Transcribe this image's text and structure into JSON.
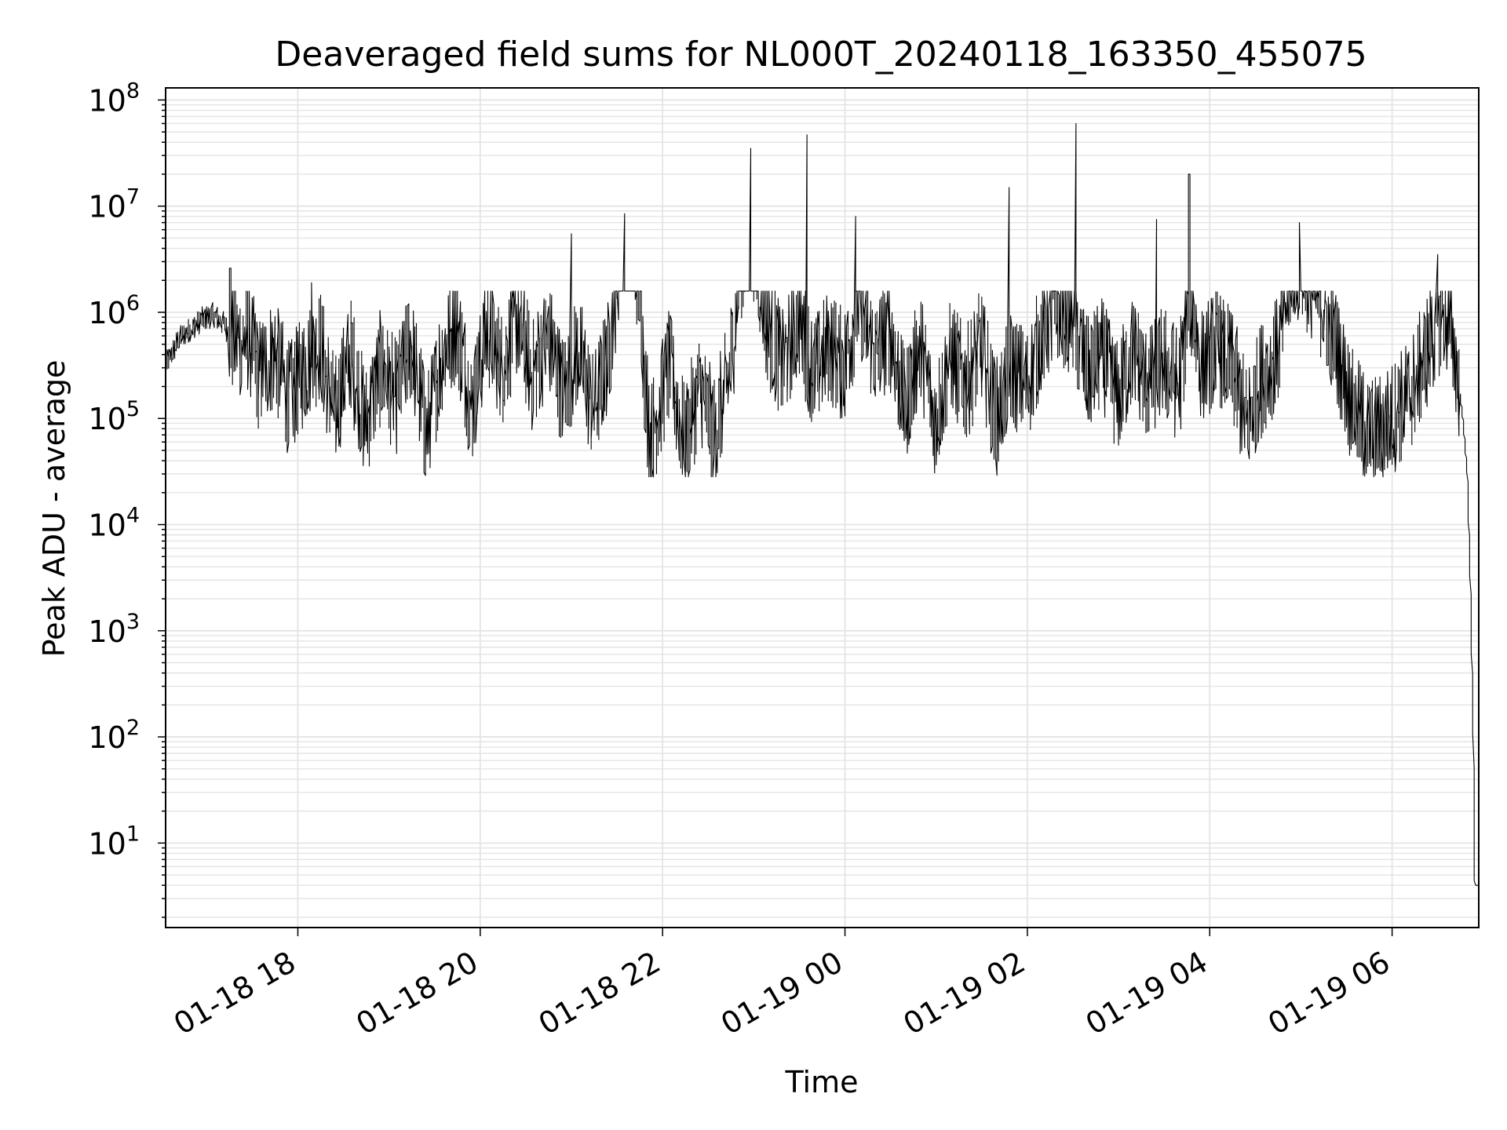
{
  "chart_data": {
    "type": "line",
    "title": "Deaveraged field sums for NL000T_20240118_163350_455075",
    "xlabel": "Time",
    "ylabel": "Peak ADU - average",
    "yscale": "log",
    "ylim": [
      1.6,
      130000000
    ],
    "xlim": [
      "2024-01-18 16:33",
      "2024-01-19 06:57"
    ],
    "grid": true,
    "legend": "none",
    "line_color": "#000000",
    "grid_color": "#e4e4e4",
    "x_ticks": [
      {
        "label": "01-18 18",
        "value": "2024-01-18 18:00"
      },
      {
        "label": "01-18 20",
        "value": "2024-01-18 20:00"
      },
      {
        "label": "01-18 22",
        "value": "2024-01-18 22:00"
      },
      {
        "label": "01-19 00",
        "value": "2024-01-19 00:00"
      },
      {
        "label": "01-19 02",
        "value": "2024-01-19 02:00"
      },
      {
        "label": "01-19 04",
        "value": "2024-01-19 04:00"
      },
      {
        "label": "01-19 06",
        "value": "2024-01-19 06:00"
      }
    ],
    "y_ticks": [
      {
        "base": "10",
        "exp": "1",
        "value": 10
      },
      {
        "base": "10",
        "exp": "2",
        "value": 100
      },
      {
        "base": "10",
        "exp": "3",
        "value": 1000
      },
      {
        "base": "10",
        "exp": "4",
        "value": 10000
      },
      {
        "base": "10",
        "exp": "5",
        "value": 100000
      },
      {
        "base": "10",
        "exp": "6",
        "value": 1000000
      },
      {
        "base": "10",
        "exp": "7",
        "value": 10000000
      },
      {
        "base": "10",
        "exp": "8",
        "value": 100000000
      }
    ],
    "series": [
      {
        "points": [
          [
            "2024-01-18 16:34",
            320000
          ],
          [
            "2024-01-18 16:42",
            560000
          ],
          [
            "2024-01-18 16:50",
            700000
          ],
          [
            "2024-01-18 16:58",
            860000
          ],
          [
            "2024-01-18 17:05",
            950000
          ],
          [
            "2024-01-18 17:12",
            760000
          ],
          [
            "2024-01-18 17:20",
            520000
          ],
          [
            "2024-01-18 17:28",
            600000
          ],
          [
            "2024-01-18 17:35",
            250000
          ],
          [
            "2024-01-18 17:45",
            420000
          ],
          [
            "2024-01-18 17:55",
            150000
          ],
          [
            "2024-01-18 18:05",
            300000
          ],
          [
            "2024-01-18 18:15",
            500000
          ],
          [
            "2024-01-18 18:25",
            110000
          ],
          [
            "2024-01-18 18:35",
            420000
          ],
          [
            "2024-01-18 18:45",
            90000
          ],
          [
            "2024-01-18 18:55",
            300000
          ],
          [
            "2024-01-18 19:05",
            160000
          ],
          [
            "2024-01-18 19:15",
            520000
          ],
          [
            "2024-01-18 19:25",
            70000
          ],
          [
            "2024-01-18 19:35",
            380000
          ],
          [
            "2024-01-18 19:45",
            800000
          ],
          [
            "2024-01-18 19:55",
            120000
          ],
          [
            "2024-01-18 20:05",
            700000
          ],
          [
            "2024-01-18 20:15",
            300000
          ],
          [
            "2024-01-18 20:25",
            900000
          ],
          [
            "2024-01-18 20:35",
            250000
          ],
          [
            "2024-01-18 20:45",
            600000
          ],
          [
            "2024-01-18 20:55",
            180000
          ],
          [
            "2024-01-18 21:05",
            450000
          ],
          [
            "2024-01-18 21:15",
            120000
          ],
          [
            "2024-01-18 21:25",
            400000
          ],
          [
            "2024-01-18 21:35",
            8500000
          ],
          [
            "2024-01-18 21:45",
            2000000
          ],
          [
            "2024-01-18 21:52",
            60000
          ],
          [
            "2024-01-18 22:05",
            300000
          ],
          [
            "2024-01-18 22:15",
            60000
          ],
          [
            "2024-01-18 22:25",
            200000
          ],
          [
            "2024-01-18 22:35",
            70000
          ],
          [
            "2024-01-18 22:45",
            300000
          ],
          [
            "2024-01-18 22:52",
            3000000
          ],
          [
            "2024-01-18 23:00",
            5000000
          ],
          [
            "2024-01-18 23:10",
            700000
          ],
          [
            "2024-01-18 23:20",
            300000
          ],
          [
            "2024-01-18 23:30",
            900000
          ],
          [
            "2024-01-18 23:40",
            250000
          ],
          [
            "2024-01-18 23:50",
            500000
          ],
          [
            "2024-01-19 00:00",
            300000
          ],
          [
            "2024-01-19 00:10",
            1500000
          ],
          [
            "2024-01-19 00:20",
            400000
          ],
          [
            "2024-01-19 00:30",
            700000
          ],
          [
            "2024-01-19 00:40",
            120000
          ],
          [
            "2024-01-19 00:50",
            500000
          ],
          [
            "2024-01-19 01:00",
            90000
          ],
          [
            "2024-01-19 01:10",
            400000
          ],
          [
            "2024-01-19 01:20",
            200000
          ],
          [
            "2024-01-19 01:30",
            500000
          ],
          [
            "2024-01-19 01:40",
            100000
          ],
          [
            "2024-01-19 01:50",
            300000
          ],
          [
            "2024-01-19 02:00",
            200000
          ],
          [
            "2024-01-19 02:10",
            600000
          ],
          [
            "2024-01-19 02:20",
            1200000
          ],
          [
            "2024-01-19 02:30",
            900000
          ],
          [
            "2024-01-19 02:40",
            250000
          ],
          [
            "2024-01-19 02:50",
            400000
          ],
          [
            "2024-01-19 03:00",
            150000
          ],
          [
            "2024-01-19 03:10",
            450000
          ],
          [
            "2024-01-19 03:20",
            200000
          ],
          [
            "2024-01-19 03:30",
            350000
          ],
          [
            "2024-01-19 03:40",
            200000
          ],
          [
            "2024-01-19 03:48",
            1500000
          ],
          [
            "2024-01-19 03:55",
            300000
          ],
          [
            "2024-01-19 04:05",
            500000
          ],
          [
            "2024-01-19 04:15",
            300000
          ],
          [
            "2024-01-19 04:25",
            90000
          ],
          [
            "2024-01-19 04:35",
            250000
          ],
          [
            "2024-01-19 04:45",
            400000
          ],
          [
            "2024-01-19 04:55",
            3000000
          ],
          [
            "2024-01-19 05:05",
            2200000
          ],
          [
            "2024-01-19 05:15",
            1200000
          ],
          [
            "2024-01-19 05:25",
            400000
          ],
          [
            "2024-01-19 05:35",
            120000
          ],
          [
            "2024-01-19 05:45",
            70000
          ],
          [
            "2024-01-19 05:55",
            80000
          ],
          [
            "2024-01-19 06:05",
            120000
          ],
          [
            "2024-01-19 06:15",
            200000
          ],
          [
            "2024-01-19 06:25",
            500000
          ],
          [
            "2024-01-19 06:33",
            1000000
          ],
          [
            "2024-01-19 06:38",
            800000
          ],
          [
            "2024-01-19 06:43",
            300000
          ],
          [
            "2024-01-19 06:47",
            100000
          ],
          [
            "2024-01-19 06:50",
            30000
          ],
          [
            "2024-01-19 06:52",
            3000
          ],
          [
            "2024-01-19 06:54",
            100
          ],
          [
            "2024-01-19 06:55",
            4
          ],
          [
            "2024-01-19 06:57",
            4
          ]
        ],
        "spikes": [
          [
            "2024-01-18 17:16",
            2600000
          ],
          [
            "2024-01-18 18:10",
            1900000
          ],
          [
            "2024-01-18 21:00",
            5500000
          ],
          [
            "2024-01-18 21:35",
            8500000
          ],
          [
            "2024-01-18 22:58",
            35000000
          ],
          [
            "2024-01-18 23:35",
            47000000
          ],
          [
            "2024-01-19 00:07",
            8000000
          ],
          [
            "2024-01-19 01:48",
            15000000
          ],
          [
            "2024-01-19 02:32",
            60000000
          ],
          [
            "2024-01-19 03:25",
            7500000
          ],
          [
            "2024-01-19 03:47",
            20000000
          ],
          [
            "2024-01-19 05:00",
            7000000
          ],
          [
            "2024-01-19 06:30",
            3500000
          ]
        ]
      }
    ]
  }
}
